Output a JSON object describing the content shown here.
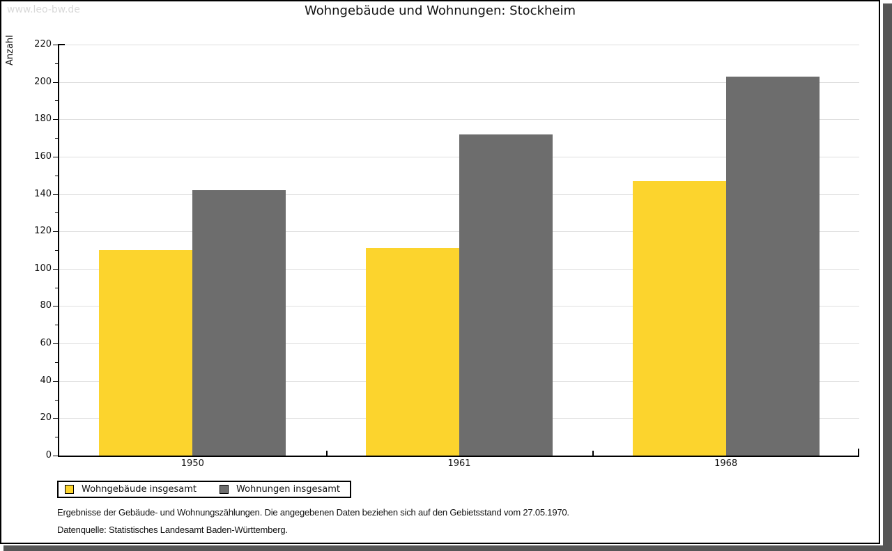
{
  "watermark": "www.leo-bw.de",
  "title": "Wohngebäude und Wohnungen: Stockheim",
  "footer": {
    "line1": "Ergebnisse der Gebäude- und Wohnungszählungen. Die angegebenen Daten beziehen sich auf den Gebietsstand vom 27.05.1970.",
    "line2": "Datenquelle: Statistisches Landesamt Baden-Württemberg."
  },
  "colors": {
    "bar_yellow": "#FCD42D",
    "bar_gray": "#6D6D6D",
    "gridline": "#DEDEDE",
    "axis": "#000000",
    "watermark": "#D9D9D9",
    "frame_shadow": "#565656"
  },
  "chart_data": {
    "type": "bar",
    "title": "Wohngebäude und Wohnungen: Stockheim",
    "categories": [
      "1950",
      "1961",
      "1968"
    ],
    "series": [
      {
        "name": "Wohngebäude insgesamt",
        "color": "#FCD42D",
        "values": [
          110,
          111,
          147
        ]
      },
      {
        "name": "Wohnungen insgesamt",
        "color": "#6D6D6D",
        "values": [
          142,
          172,
          203
        ]
      }
    ],
    "xlabel": "",
    "ylabel": "Anzahl",
    "ylim": [
      0,
      220
    ],
    "ytick_step": 20,
    "yminor_step": 10,
    "grid": true,
    "legend_position": "bottom-left"
  }
}
